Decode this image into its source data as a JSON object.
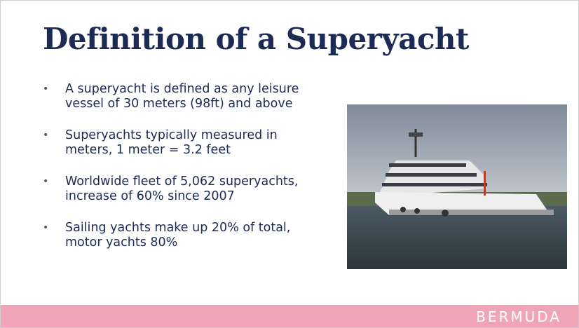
{
  "slide": {
    "title": "Definition of a Superyacht",
    "bullets": [
      "A superyacht is defined as any leisure vessel of 30 meters (98ft) and above",
      "Superyachts typically measured in meters, 1 meter = 3.2 feet",
      "Worldwide fleet of 5,062 superyachts, increase of 60% since 2007",
      "Sailing yachts make up 20% of total, motor yachts 80%"
    ],
    "footer": "BERMUDA"
  }
}
